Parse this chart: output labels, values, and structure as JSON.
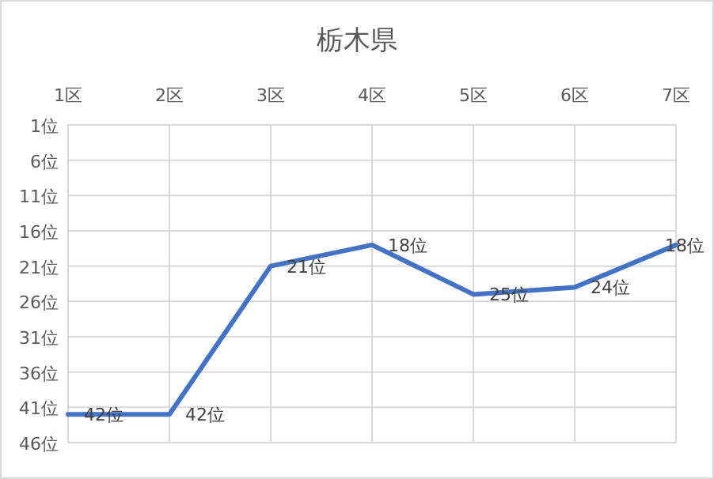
{
  "chart_data": {
    "type": "line",
    "title": "栃木県",
    "categories": [
      "1区",
      "2区",
      "3区",
      "4区",
      "5区",
      "6区",
      "7区"
    ],
    "values": [
      42,
      42,
      21,
      18,
      25,
      24,
      18
    ],
    "value_labels": [
      "42位",
      "42位",
      "21位",
      "18位",
      "25位",
      "24位",
      "18位"
    ],
    "color": "#4472c4",
    "ylim": [
      46,
      1
    ],
    "yticks": [
      {
        "value": 1,
        "label": "1位"
      },
      {
        "value": 6,
        "label": "6位"
      },
      {
        "value": 11,
        "label": "11位"
      },
      {
        "value": 16,
        "label": "16位"
      },
      {
        "value": 21,
        "label": "21位"
      },
      {
        "value": 26,
        "label": "26位"
      },
      {
        "value": 31,
        "label": "31位"
      },
      {
        "value": 36,
        "label": "36位"
      },
      {
        "value": 41,
        "label": "41位"
      },
      {
        "value": 46,
        "label": "46位"
      }
    ],
    "grid": true
  }
}
